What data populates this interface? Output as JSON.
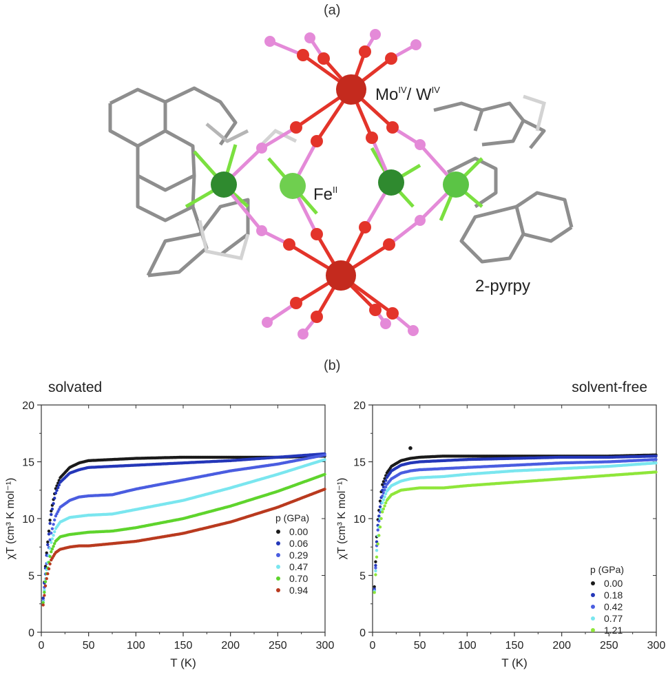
{
  "panel_a": {
    "label": "(a)"
  },
  "panel_b": {
    "label": "(b)"
  },
  "structure": {
    "labels": {
      "mo_w": {
        "main": "Mo",
        "sup1": "IV",
        "sep": "/ W",
        "sup2": "IV"
      },
      "fe": {
        "main": "Fe",
        "sup": "II"
      },
      "ligand": "2-pyrpy"
    },
    "colors": {
      "mo": "#c42a1e",
      "fe_dark": "#2f8a2f",
      "fe_light": "#6fcf4f",
      "cn_c": "#e3342a",
      "cn_n": "#e48ad8",
      "ligand": "#8a8a8a",
      "ligand_n": "#7be040"
    }
  },
  "chart_data": [
    {
      "type": "scatter",
      "title": "solvated",
      "xlabel": "T  (K)",
      "ylabel": "χT  (cm³ K mol⁻¹)",
      "xlim": [
        0,
        300
      ],
      "ylim": [
        0,
        20
      ],
      "xticks": [
        0,
        50,
        100,
        150,
        200,
        250,
        300
      ],
      "yticks": [
        0,
        5,
        10,
        15,
        20
      ],
      "legend_title": "p  (GPa)",
      "legend_position": "center-right",
      "series": [
        {
          "name": "0.00",
          "color": "#1a1a1a",
          "x": [
            2,
            5,
            10,
            15,
            20,
            30,
            40,
            50,
            75,
            100,
            150,
            200,
            250,
            300
          ],
          "y": [
            3.0,
            6.5,
            10.5,
            12.6,
            13.6,
            14.5,
            14.9,
            15.1,
            15.2,
            15.3,
            15.4,
            15.4,
            15.4,
            15.5
          ]
        },
        {
          "name": "0.06",
          "color": "#2437b8",
          "x": [
            2,
            5,
            10,
            15,
            20,
            30,
            40,
            50,
            75,
            100,
            150,
            200,
            250,
            300
          ],
          "y": [
            3.0,
            6.3,
            10.2,
            12.2,
            13.2,
            14.0,
            14.3,
            14.5,
            14.6,
            14.7,
            14.9,
            15.1,
            15.4,
            15.7
          ]
        },
        {
          "name": "0.29",
          "color": "#4a5de0",
          "x": [
            2,
            5,
            10,
            15,
            20,
            30,
            40,
            50,
            75,
            100,
            150,
            200,
            250,
            300
          ],
          "y": [
            2.8,
            5.7,
            8.6,
            10.2,
            11.0,
            11.6,
            11.9,
            12.0,
            12.1,
            12.6,
            13.4,
            14.2,
            14.8,
            15.6
          ]
        },
        {
          "name": "0.47",
          "color": "#7ae6ef",
          "x": [
            2,
            5,
            10,
            15,
            20,
            30,
            40,
            50,
            75,
            100,
            150,
            200,
            250,
            300
          ],
          "y": [
            2.7,
            5.2,
            7.8,
            9.1,
            9.7,
            10.1,
            10.2,
            10.3,
            10.4,
            10.8,
            11.6,
            12.7,
            13.9,
            15.2
          ]
        },
        {
          "name": "0.70",
          "color": "#5fd42d",
          "x": [
            2,
            5,
            10,
            15,
            20,
            30,
            40,
            50,
            75,
            100,
            150,
            200,
            250,
            300
          ],
          "y": [
            2.6,
            4.9,
            7.0,
            8.0,
            8.4,
            8.6,
            8.7,
            8.8,
            8.9,
            9.2,
            10.0,
            11.1,
            12.4,
            13.9
          ]
        },
        {
          "name": "0.94",
          "color": "#b93a1f",
          "x": [
            2,
            5,
            10,
            15,
            20,
            30,
            40,
            50,
            75,
            100,
            150,
            200,
            250,
            300
          ],
          "y": [
            2.4,
            4.5,
            6.3,
            7.0,
            7.3,
            7.5,
            7.6,
            7.6,
            7.8,
            8.0,
            8.7,
            9.7,
            11.0,
            12.6
          ]
        }
      ]
    },
    {
      "type": "scatter",
      "title": "solvent-free",
      "xlabel": "T  (K)",
      "ylabel": "χT  (cm³ K mol⁻¹)",
      "xlim": [
        0,
        300
      ],
      "ylim": [
        0,
        20
      ],
      "xticks": [
        0,
        50,
        100,
        150,
        200,
        250,
        300
      ],
      "yticks": [
        0,
        5,
        10,
        15,
        20
      ],
      "legend_title": "p  (GPa)",
      "legend_position": "bottom-right",
      "series": [
        {
          "name": "0.00",
          "color": "#1a1a1a",
          "x": [
            2,
            5,
            10,
            15,
            20,
            30,
            40,
            50,
            75,
            100,
            150,
            200,
            250,
            300
          ],
          "y": [
            4.0,
            9.5,
            12.9,
            14.0,
            14.6,
            15.1,
            15.3,
            15.4,
            15.5,
            15.5,
            15.5,
            15.5,
            15.5,
            15.6
          ]
        },
        {
          "name": "0.18",
          "color": "#2437b8",
          "x": [
            2,
            5,
            10,
            15,
            20,
            30,
            40,
            50,
            75,
            100,
            150,
            200,
            250,
            300
          ],
          "y": [
            3.8,
            9.0,
            12.4,
            13.6,
            14.2,
            14.7,
            14.9,
            15.0,
            15.1,
            15.2,
            15.3,
            15.4,
            15.4,
            15.5
          ]
        },
        {
          "name": "0.42",
          "color": "#4a5de0",
          "x": [
            2,
            5,
            10,
            15,
            20,
            30,
            40,
            50,
            75,
            100,
            150,
            200,
            250,
            300
          ],
          "y": [
            3.7,
            8.6,
            11.9,
            13.0,
            13.5,
            14.0,
            14.2,
            14.3,
            14.4,
            14.5,
            14.7,
            14.9,
            15.0,
            15.2
          ]
        },
        {
          "name": "0.77",
          "color": "#7ae6ef",
          "x": [
            2,
            5,
            10,
            15,
            20,
            30,
            40,
            50,
            75,
            100,
            150,
            200,
            250,
            300
          ],
          "y": [
            3.6,
            8.1,
            11.3,
            12.4,
            12.9,
            13.3,
            13.5,
            13.6,
            13.7,
            13.9,
            14.2,
            14.4,
            14.6,
            14.9
          ]
        },
        {
          "name": "1.21",
          "color": "#8fe63a",
          "x": [
            2,
            5,
            10,
            15,
            20,
            30,
            40,
            50,
            75,
            100,
            150,
            200,
            250,
            300
          ],
          "y": [
            3.5,
            7.4,
            10.5,
            11.6,
            12.1,
            12.5,
            12.6,
            12.7,
            12.7,
            12.9,
            13.2,
            13.5,
            13.8,
            14.1
          ]
        }
      ],
      "outliers": [
        {
          "x": 40,
          "y": 16.2,
          "color": "#1a1a1a"
        }
      ]
    }
  ]
}
